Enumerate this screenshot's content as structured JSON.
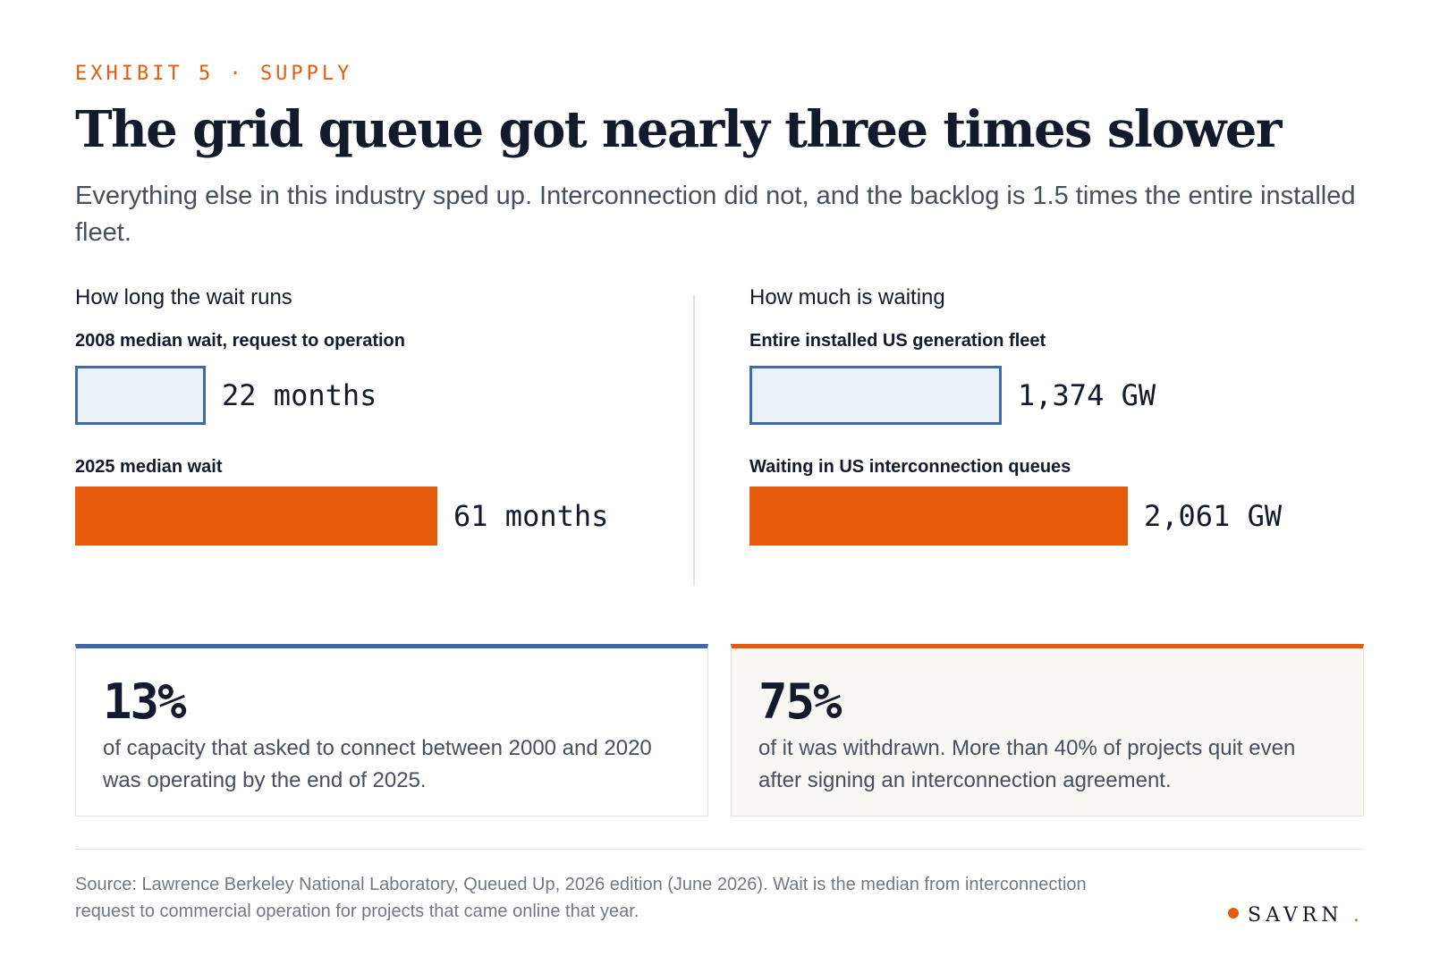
{
  "header": {
    "eyebrow": "EXHIBIT 5 · SUPPLY",
    "title": "The grid queue got nearly three times slower",
    "subtitle": "Everything else in this industry sped up. Interconnection did not, and the backlog is 1.5 times the entire installed fleet."
  },
  "chart_data": [
    {
      "type": "bar",
      "title": "How long the wait runs",
      "categories": [
        "2008 median wait, request to operation",
        "2025 median wait"
      ],
      "values": [
        22,
        61
      ],
      "value_labels": [
        "22 months",
        "61 months"
      ],
      "unit": "months",
      "colors": [
        "#eaf2fa",
        "#e65c0c"
      ],
      "outline_color": "#3e6aab"
    },
    {
      "type": "bar",
      "title": "How much is waiting",
      "categories": [
        "Entire installed US generation fleet",
        "Waiting in US interconnection queues"
      ],
      "values": [
        1374,
        2061
      ],
      "value_labels": [
        "1,374 GW",
        "2,061 GW"
      ],
      "unit": "GW",
      "colors": [
        "#eaf2fa",
        "#e65c0c"
      ],
      "outline_color": "#3e6aab"
    }
  ],
  "stats": [
    {
      "number": "13%",
      "text": "of capacity that asked to connect between 2000 and 2020 was operating by the end of 2025.",
      "accent": "#3e6aab"
    },
    {
      "number": "75%",
      "text": "of it was withdrawn. More than 40% of projects quit even after signing an interconnection agreement.",
      "accent": "#e65c0c"
    }
  ],
  "footer": {
    "source": "Source: Lawrence Berkeley National Laboratory, Queued Up, 2026 edition (June 2026). Wait is the median from interconnection request to commercial operation for projects that came online that year.",
    "brand": "SAVRN",
    "brand_period": "."
  }
}
